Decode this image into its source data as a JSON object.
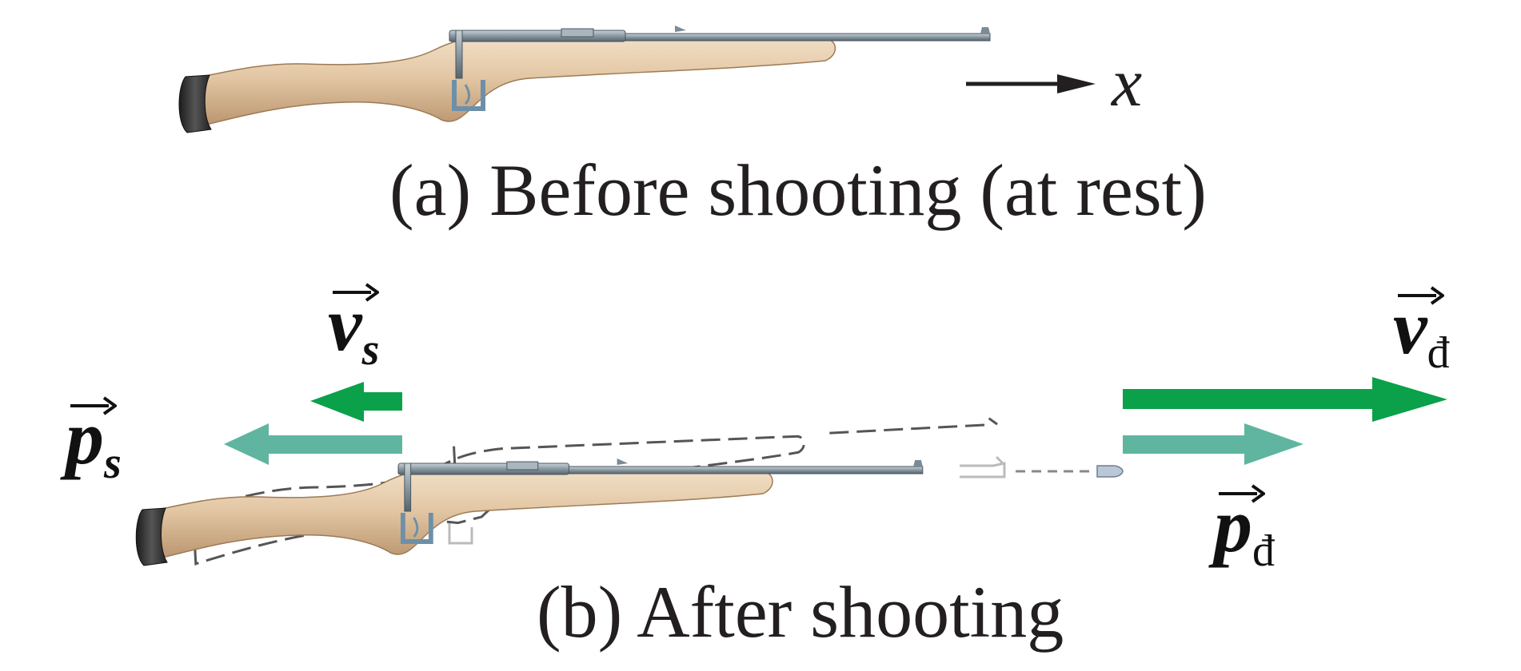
{
  "captions": {
    "before": "(a) Before shooting (at rest)",
    "after": "(b) After shooting"
  },
  "axis": {
    "label": "x"
  },
  "vectors": {
    "v_gun": {
      "symbol": "v",
      "subscript": "s"
    },
    "p_gun": {
      "symbol": "p",
      "subscript": "s"
    },
    "v_bullet": {
      "symbol": "v",
      "subscript": "đ"
    },
    "p_bullet": {
      "symbol": "p",
      "subscript": "đ"
    }
  },
  "colors": {
    "velocity_arrow": "#0aa14a",
    "momentum_arrow": "#5fb5a0",
    "gun_wood": "#e3c8a6",
    "gun_metal": "#7b8a94",
    "outline_dashed": "#555555",
    "text": "#231f20"
  }
}
